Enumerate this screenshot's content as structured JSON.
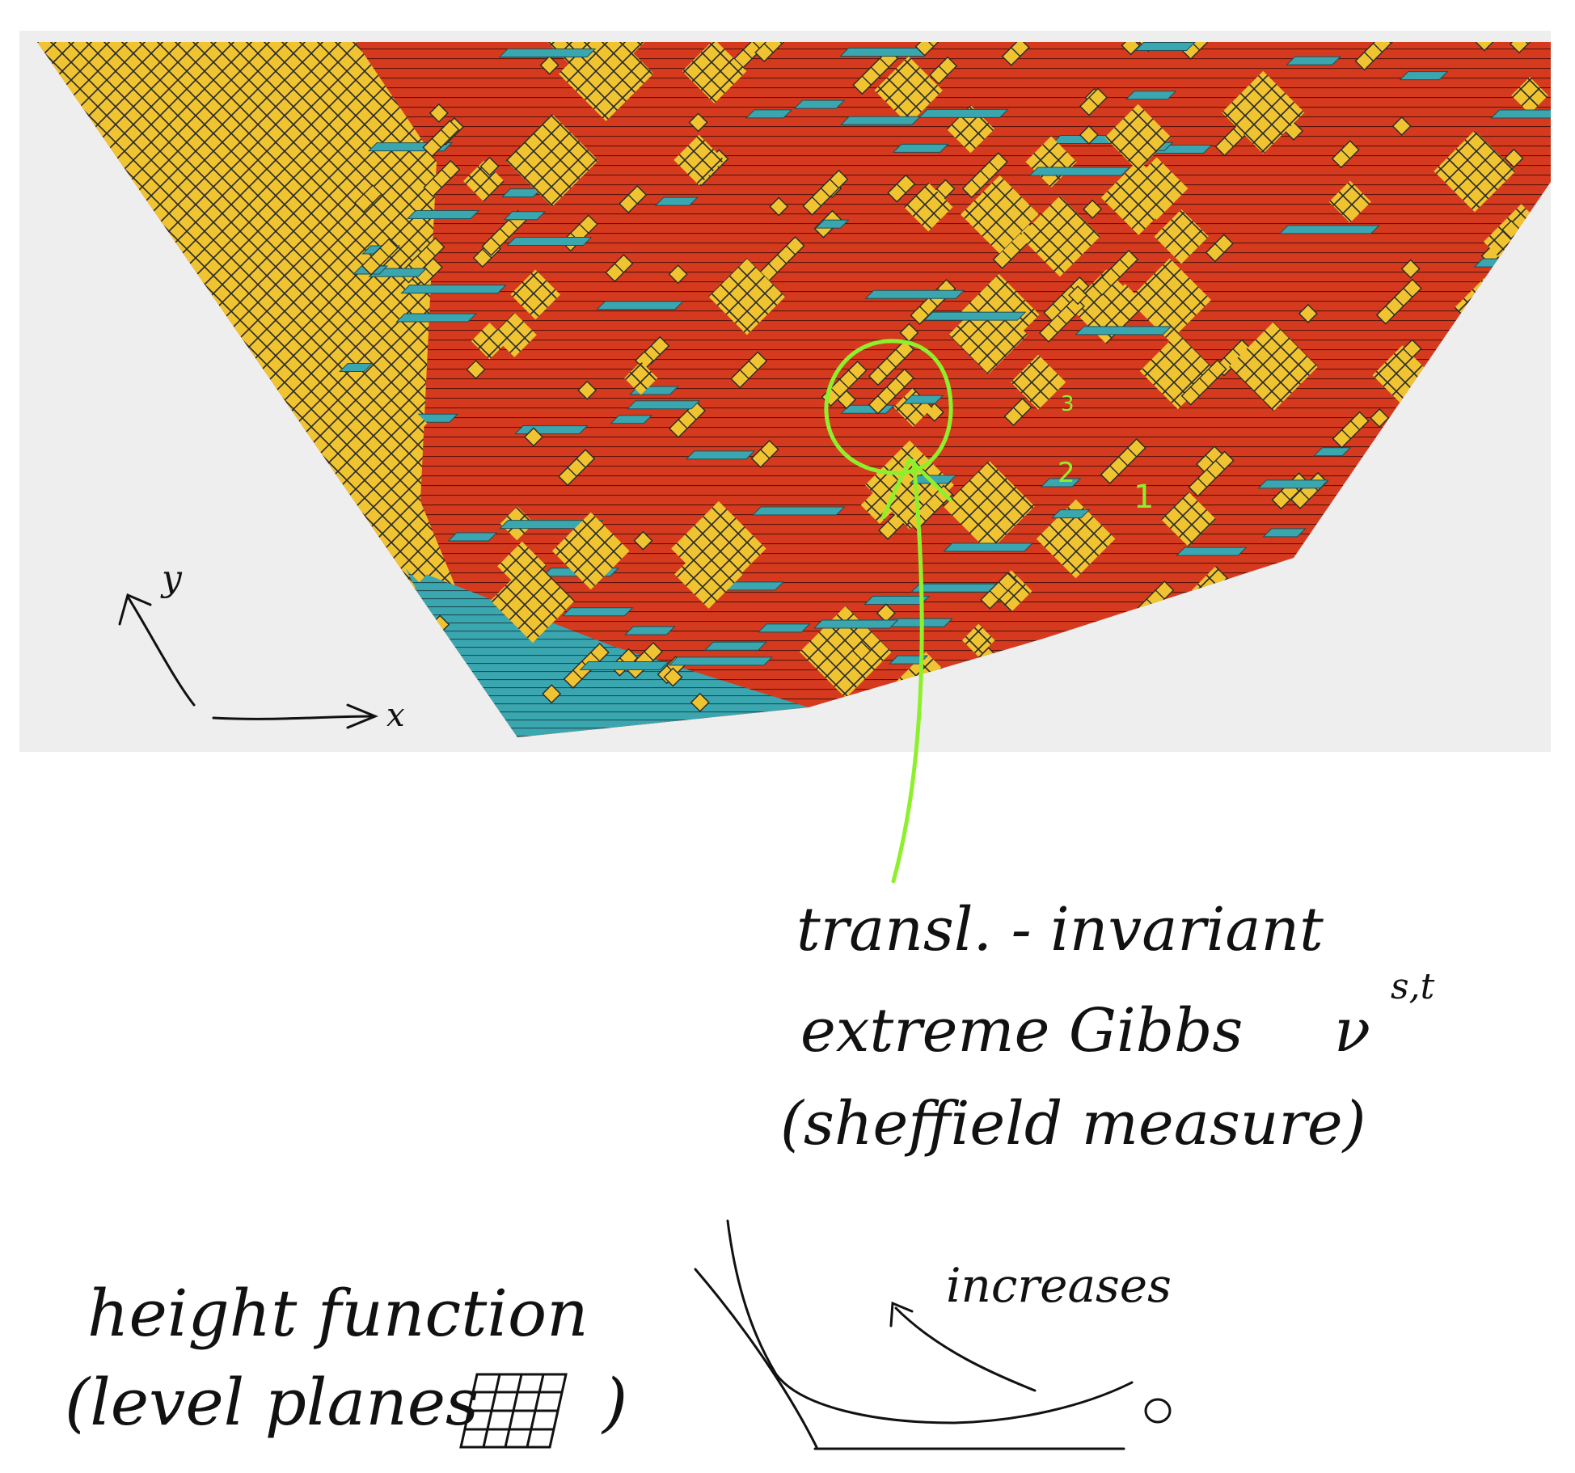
{
  "colors": {
    "panel_bg": "#eeeeee",
    "yellow": "#f0c430",
    "red": "#d63a1e",
    "teal": "#3aa6b0",
    "edge": "#222222",
    "annotation_green": "#8ef02c",
    "ink": "#111111"
  },
  "tiling_panel": {
    "axis_labels": {
      "y": "y",
      "x": "x"
    },
    "level_numbers": [
      "3",
      "2",
      "1"
    ]
  },
  "annotations": {
    "measure_note": {
      "line1": "transl. - invariant",
      "line2": "extreme Gibbs",
      "symbol": "ν",
      "superscript": "s,t",
      "line3": "(sheffield measure)"
    },
    "height_note": {
      "line1": "height function",
      "line2": "(level planes",
      "close_paren": ")"
    },
    "sketch_label": "increases",
    "sketch_zero": "0"
  }
}
